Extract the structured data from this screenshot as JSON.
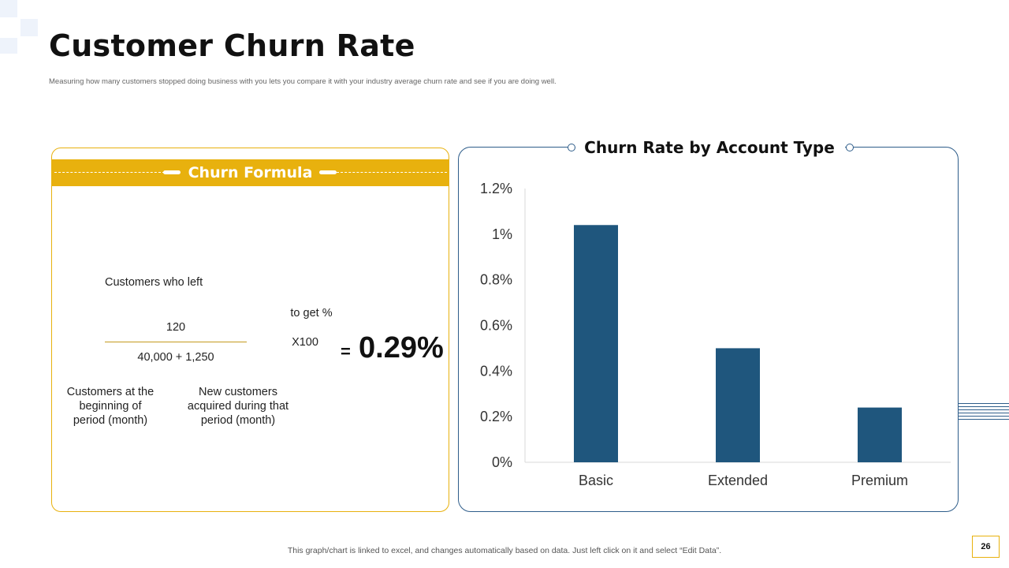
{
  "page": {
    "title": "Customer Churn Rate",
    "subtitle": "Measuring how many customers stopped doing business with you lets you compare it with your industry average churn rate and see if you are doing  well.",
    "footer_note": "This graph/chart is linked to excel,  and changes automatically based on data. Just left click on it and select “Edit Data”.",
    "page_number": "26"
  },
  "formula": {
    "header": "Churn Formula",
    "numerator_label": "Customers who left",
    "numerator_value": "120",
    "denominator_value": "40,000 + 1,250",
    "denominator_label_1": "Customers at the beginning of period (month)",
    "denominator_label_2": "New customers acquired during that period (month)",
    "to_get_pct": "to get %",
    "multiplier": "X100",
    "equals": "=",
    "result": "0.29%"
  },
  "colors": {
    "accent_yellow": "#e8b10e",
    "bar_blue": "#1f567d",
    "panel_border_blue": "#2e5d8a"
  },
  "chart_data": {
    "type": "bar",
    "title": "Churn Rate by Account Type",
    "categories": [
      "Basic",
      "Extended",
      "Premium"
    ],
    "values": [
      1.04,
      0.5,
      0.24
    ],
    "ylim": [
      0,
      1.2
    ],
    "yticks": [
      0,
      0.2,
      0.4,
      0.6,
      0.8,
      1.0,
      1.2
    ],
    "ytick_labels": [
      "0%",
      "0.2%",
      "0.4%",
      "0.6%",
      "0.8%",
      "1%",
      "1.2%"
    ],
    "grid": false,
    "legend": "none"
  }
}
